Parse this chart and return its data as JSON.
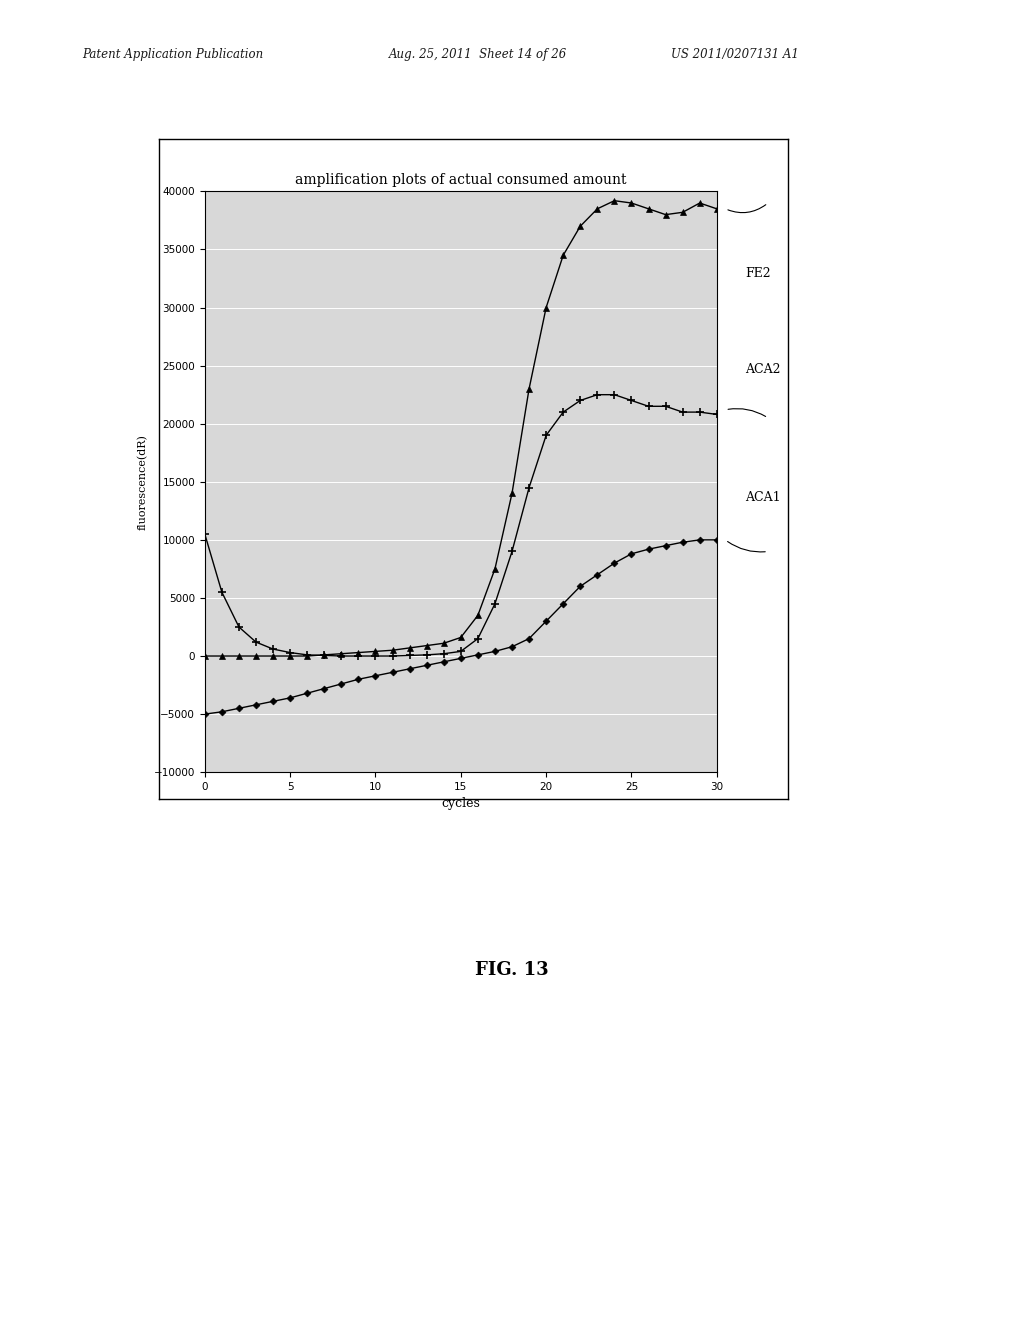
{
  "title": "amplification plots of actual consumed amount",
  "xlabel": "cycles",
  "ylabel": "fluorescence(dR)",
  "xlim": [
    0,
    30
  ],
  "ylim": [
    -10000,
    40000
  ],
  "xticks": [
    0,
    5,
    10,
    15,
    20,
    25,
    30
  ],
  "yticks": [
    -10000,
    -5000,
    0,
    5000,
    10000,
    15000,
    20000,
    25000,
    30000,
    35000,
    40000
  ],
  "header_left": "Patent Application Publication",
  "header_center": "Aug. 25, 2011  Sheet 14 of 26",
  "header_right": "US 2011/0207131 A1",
  "fig_label": "FIG. 13",
  "background_color": "#ffffff",
  "plot_bg": "#d8d8d8",
  "series_FE2_x": [
    0,
    1,
    2,
    3,
    4,
    5,
    6,
    7,
    8,
    9,
    10,
    11,
    12,
    13,
    14,
    15,
    16,
    17,
    18,
    19,
    20,
    21,
    22,
    23,
    24,
    25,
    26,
    27,
    28,
    29,
    30
  ],
  "series_FE2_y": [
    0,
    0,
    0,
    0,
    0,
    0,
    0,
    100,
    200,
    300,
    400,
    500,
    700,
    900,
    1100,
    1600,
    3500,
    7500,
    14000,
    23000,
    30000,
    34500,
    37000,
    38500,
    39200,
    39000,
    38500,
    38000,
    38200,
    39000,
    38500
  ],
  "series_ACA2_x": [
    0,
    1,
    2,
    3,
    4,
    5,
    6,
    7,
    8,
    9,
    10,
    11,
    12,
    13,
    14,
    15,
    16,
    17,
    18,
    19,
    20,
    21,
    22,
    23,
    24,
    25,
    26,
    27,
    28,
    29,
    30
  ],
  "series_ACA2_y": [
    10500,
    5500,
    2500,
    1200,
    600,
    300,
    100,
    50,
    0,
    0,
    0,
    0,
    50,
    100,
    200,
    400,
    1500,
    4500,
    9000,
    14500,
    19000,
    21000,
    22000,
    22500,
    22500,
    22000,
    21500,
    21500,
    21000,
    21000,
    20800
  ],
  "series_ACA1_x": [
    0,
    1,
    2,
    3,
    4,
    5,
    6,
    7,
    8,
    9,
    10,
    11,
    12,
    13,
    14,
    15,
    16,
    17,
    18,
    19,
    20,
    21,
    22,
    23,
    24,
    25,
    26,
    27,
    28,
    29,
    30
  ],
  "series_ACA1_y": [
    -5000,
    -4800,
    -4500,
    -4200,
    -3900,
    -3600,
    -3200,
    -2800,
    -2400,
    -2000,
    -1700,
    -1400,
    -1100,
    -800,
    -500,
    -200,
    100,
    400,
    800,
    1500,
    3000,
    4500,
    6000,
    7000,
    8000,
    8800,
    9200,
    9500,
    9800,
    10000,
    10000
  ]
}
